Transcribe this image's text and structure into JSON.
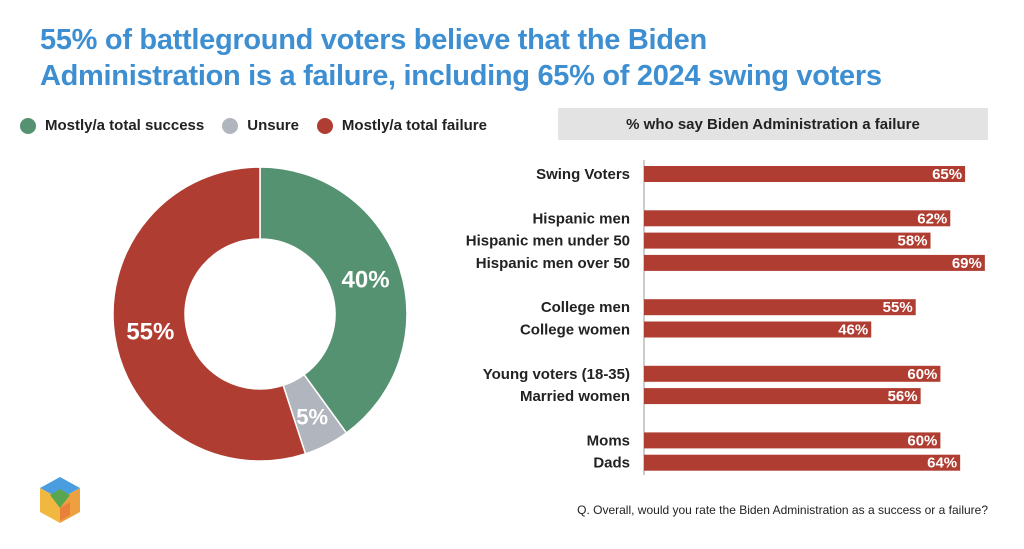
{
  "title_line1": "55% of battleground voters believe that the Biden",
  "title_line2": "Administration is a failure, including 65% of 2024 swing voters",
  "footnote": "Q. Overall, would you rate the Biden Administration as a success or a failure?",
  "chart_data": [
    {
      "type": "pie",
      "variant": "donut",
      "legend": [
        "Mostly/a total success",
        "Unsure",
        "Mostly/a total failure"
      ],
      "values": [
        40,
        5,
        55
      ],
      "labels": [
        "40%",
        "5%",
        "55%"
      ],
      "colors": [
        "#559271",
        "#b1b5bd",
        "#b03d32"
      ],
      "legend_placement": "top-left"
    },
    {
      "type": "bar",
      "orientation": "horizontal",
      "title": "% who say Biden Administration a failure",
      "categories": [
        "Swing Voters",
        "Hispanic men",
        "Hispanic men under 50",
        "Hispanic men over 50",
        "College men",
        "College women",
        "Young voters (18-35)",
        "Married women",
        "Moms",
        "Dads"
      ],
      "groups": [
        0,
        1,
        1,
        1,
        2,
        2,
        3,
        3,
        4,
        4
      ],
      "values": [
        65,
        62,
        58,
        69,
        55,
        46,
        60,
        56,
        60,
        64
      ],
      "labels": [
        "65%",
        "62%",
        "58%",
        "69%",
        "55%",
        "46%",
        "60%",
        "56%",
        "60%",
        "64%"
      ],
      "color": "#b03d32"
    }
  ]
}
